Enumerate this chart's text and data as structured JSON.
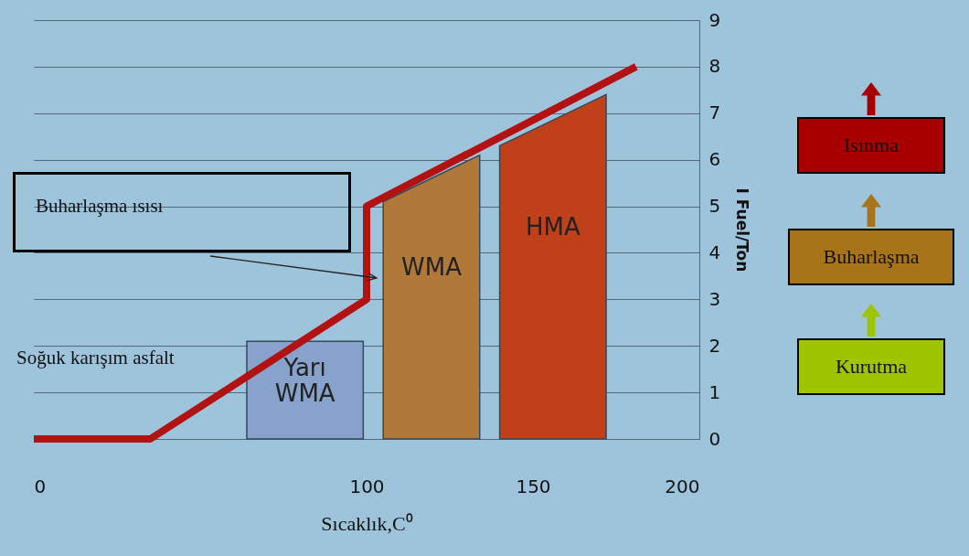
{
  "chart_data": {
    "type": "line",
    "xlabel": "Sıcaklık,C⁰",
    "ylabel": "I Fuel/Ton",
    "xlim": [
      0,
      200
    ],
    "ylim": [
      0,
      9
    ],
    "xticks": [
      0,
      100,
      150,
      200
    ],
    "yticks": [
      0,
      1,
      2,
      3,
      4,
      5,
      6,
      7,
      8,
      9
    ],
    "grid": "y",
    "marker": "none",
    "line_style": "solid",
    "series": [
      {
        "type": "area",
        "name": "Yarı WMA",
        "color": "#87a3cb",
        "x": [
          64,
          99
        ],
        "values": [
          2.1,
          2.1
        ]
      },
      {
        "type": "area",
        "name": "WMA",
        "color": "#b0793a",
        "x": [
          105,
          134
        ],
        "values": [
          5.1,
          6.1
        ]
      },
      {
        "type": "area",
        "name": "HMA",
        "color": "#c0401a",
        "x": [
          140,
          172
        ],
        "values": [
          6.3,
          7.4
        ]
      },
      {
        "color": "#b31212",
        "x": [
          0,
          35,
          100,
          100,
          181
        ],
        "values": [
          0,
          0,
          3,
          5,
          8
        ]
      }
    ],
    "annotations": [
      "Buharlaşma ısısı",
      "Soğuk karışım asfalt",
      "Isınma",
      "Buharlaşma",
      "Kurutma"
    ]
  }
}
